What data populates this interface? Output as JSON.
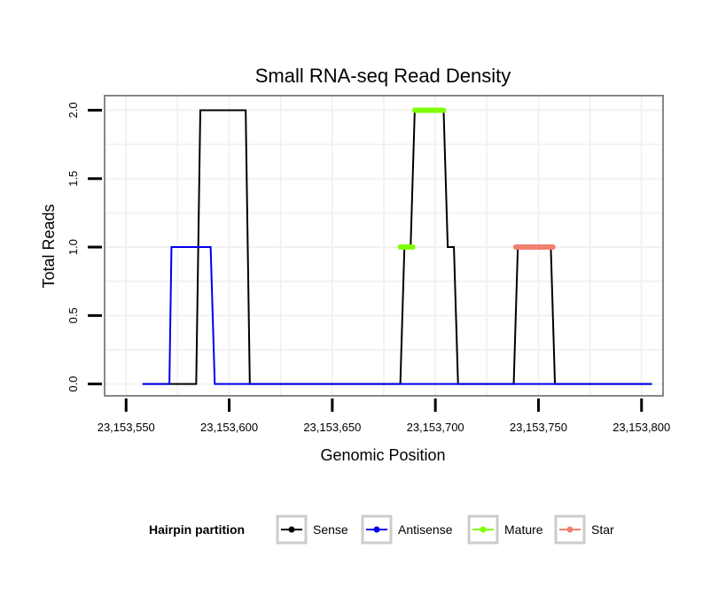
{
  "chart_data": {
    "type": "line",
    "title": "Small RNA-seq Read Density",
    "xlabel": "Genomic Position",
    "ylabel": "Total Reads",
    "xlim": [
      23153540,
      23153810
    ],
    "ylim": [
      -0.08,
      2.1
    ],
    "x_ticks": [
      23153550,
      23153600,
      23153650,
      23153700,
      23153750,
      23153800
    ],
    "x_tick_labels": [
      "23,153,550",
      "23,153,600",
      "23,153,650",
      "23,153,700",
      "23,153,750",
      "23,153,800"
    ],
    "y_ticks": [
      0,
      0.5,
      1,
      1.5,
      2
    ],
    "y_tick_labels": [
      "0.0",
      "0.5",
      "1.0",
      "1.5",
      "2.0"
    ],
    "grid": true,
    "legend": {
      "title": "Hairpin partition",
      "position": "bottom",
      "entries": [
        {
          "label": "Sense",
          "color": "#000000"
        },
        {
          "label": "Antisense",
          "color": "#0000ee"
        },
        {
          "label": "Mature",
          "color": "#7fff00"
        },
        {
          "label": "Star",
          "color": "#f08070"
        }
      ]
    },
    "series": [
      {
        "name": "Sense",
        "color": "#000000",
        "width": 2,
        "x": [
          23153558,
          23153584,
          23153586,
          23153608,
          23153610,
          23153683,
          23153685,
          23153688,
          23153690,
          23153704,
          23153706,
          23153709,
          23153711,
          23153738,
          23153740,
          23153756,
          23153758,
          23153805
        ],
        "y": [
          0,
          0,
          2,
          2,
          0,
          0,
          1,
          1,
          2,
          2,
          1,
          1,
          0,
          0,
          1,
          1,
          0,
          0
        ]
      },
      {
        "name": "Antisense",
        "color": "#0000ee",
        "width": 2,
        "x": [
          23153558,
          23153571,
          23153572,
          23153591,
          23153593,
          23153805
        ],
        "y": [
          0,
          0,
          1,
          1,
          0,
          0
        ]
      },
      {
        "name": "Mature",
        "color": "#7fff00",
        "width": 6,
        "segments": [
          {
            "x": [
              23153683,
              23153689
            ],
            "y": [
              1,
              1
            ]
          },
          {
            "x": [
              23153690,
              23153704
            ],
            "y": [
              2,
              2
            ]
          }
        ]
      },
      {
        "name": "Star",
        "color": "#f08070",
        "width": 6,
        "segments": [
          {
            "x": [
              23153739,
              23153757
            ],
            "y": [
              1,
              1
            ]
          }
        ]
      }
    ]
  }
}
